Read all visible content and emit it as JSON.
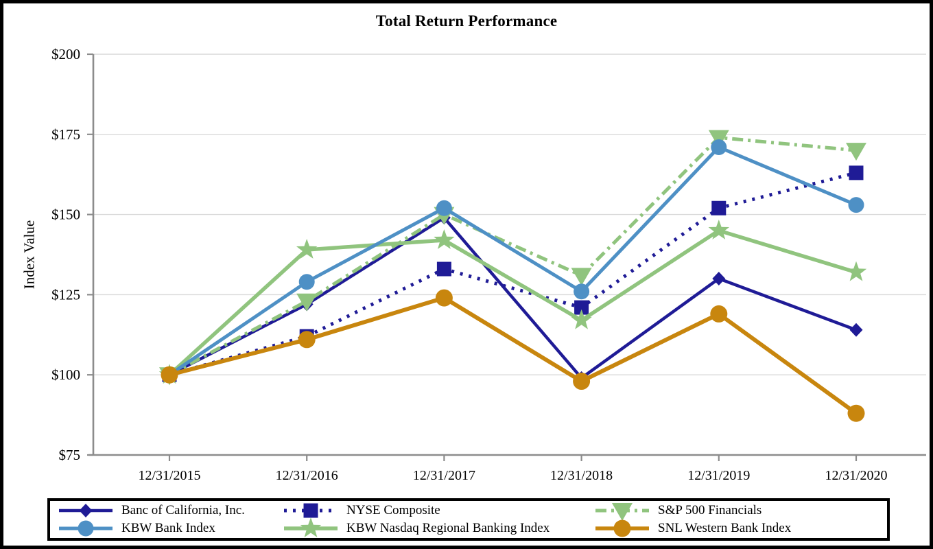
{
  "chart_data": {
    "type": "line",
    "title": "Total Return Performance",
    "xlabel": "",
    "ylabel": "Index Value",
    "categories": [
      "12/31/2015",
      "12/31/2016",
      "12/31/2017",
      "12/31/2018",
      "12/31/2019",
      "12/31/2020"
    ],
    "ylim": [
      75,
      200
    ],
    "grid": true,
    "y_ticks": [
      {
        "label": "$200",
        "value": 200
      },
      {
        "label": "$175",
        "value": 175
      },
      {
        "label": "$150",
        "value": 150
      },
      {
        "label": "$125",
        "value": 125
      },
      {
        "label": "$100",
        "value": 100
      },
      {
        "label": "$75",
        "value": 75
      }
    ],
    "series": [
      {
        "name": "Banc of California, Inc.",
        "color": "#1F1B96",
        "line_style": "solid",
        "marker": "diamond",
        "values": [
          100,
          122,
          149,
          99,
          130,
          114
        ]
      },
      {
        "name": "KBW Bank Index",
        "color": "#4E90C5",
        "line_style": "solid",
        "marker": "circle",
        "values": [
          100,
          129,
          152,
          126,
          171,
          153
        ]
      },
      {
        "name": "NYSE Composite",
        "color": "#1F1B96",
        "line_style": "dotted",
        "marker": "square",
        "values": [
          100,
          112,
          133,
          121,
          152,
          163
        ]
      },
      {
        "name": "KBW Nasdaq Regional Banking Index",
        "color": "#90C47E",
        "line_style": "solid",
        "marker": "star",
        "values": [
          100,
          139,
          142,
          117,
          145,
          132
        ]
      },
      {
        "name": "S&P 500 Financials",
        "color": "#90C47E",
        "line_style": "dash-dot",
        "marker": "triangle-down",
        "values": [
          100,
          123,
          150,
          131,
          174,
          170
        ]
      },
      {
        "name": "SNL Western Bank Index",
        "color": "#C8860E",
        "line_style": "solid",
        "marker": "circle-large",
        "values": [
          100,
          111,
          124,
          98,
          119,
          88
        ]
      }
    ],
    "legend": {
      "position": "bottom",
      "columns": [
        [
          0,
          1
        ],
        [
          2,
          3
        ],
        [
          4,
          5
        ]
      ]
    }
  },
  "colors": {
    "grid": "#D9D9D9",
    "axis": "#8C8C8C",
    "text": "#000000",
    "frame": "#000000"
  }
}
